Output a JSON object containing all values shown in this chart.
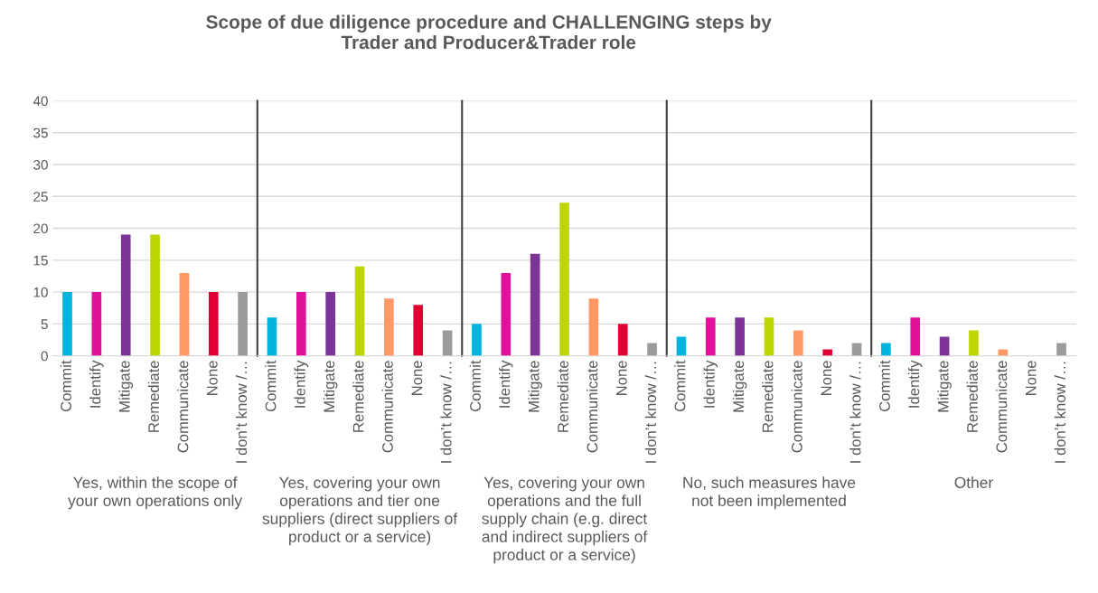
{
  "chart_data": [
    {
      "type": "bar",
      "title": "Scope of due diligence procedure and CHALLENGING steps by\nTrader and Producer&Trader role",
      "xlabel": "Yes, within the scope of\nyour own operations only",
      "categories": [
        "Commit",
        "Identify",
        "Mitigate",
        "Remediate",
        "Communicate",
        "None",
        "I don’t know /…"
      ],
      "values": [
        10,
        10,
        19,
        19,
        13,
        10,
        10
      ],
      "colors": [
        "#00b4e0",
        "#e0129c",
        "#7c3597",
        "#bed600",
        "#ff9966",
        "#e00034",
        "#9b9b9b"
      ],
      "ylim": [
        0,
        40
      ],
      "yticks": [
        0,
        5,
        10,
        15,
        20,
        25,
        30,
        35,
        40
      ],
      "grid": "y"
    },
    {
      "type": "bar",
      "xlabel": "Yes, covering your own\noperations and tier one\nsuppliers (direct suppliers of\nproduct or a service)",
      "categories": [
        "Commit",
        "Identify",
        "Mitigate",
        "Remediate",
        "Communicate",
        "None",
        "I don’t know /…"
      ],
      "values": [
        6,
        10,
        10,
        14,
        9,
        8,
        4
      ],
      "colors": [
        "#00b4e0",
        "#e0129c",
        "#7c3597",
        "#bed600",
        "#ff9966",
        "#e00034",
        "#9b9b9b"
      ],
      "ylim": [
        0,
        40
      ],
      "tick_labels": "x",
      "grid": "y"
    },
    {
      "type": "bar",
      "xlabel": "Yes, covering your own\noperations and the full\nsupply chain (e.g. direct\nand indirect suppliers of\nproduct or a service)",
      "categories": [
        "Commit",
        "Identify",
        "Mitigate",
        "Remediate",
        "Communicate",
        "None",
        "I don’t know /…"
      ],
      "values": [
        5,
        13,
        16,
        24,
        9,
        5,
        2
      ],
      "colors": [
        "#00b4e0",
        "#e0129c",
        "#7c3597",
        "#bed600",
        "#ff9966",
        "#e00034",
        "#9b9b9b"
      ],
      "ylim": [
        0,
        40
      ],
      "tick_labels": "x",
      "grid": "y"
    },
    {
      "type": "bar",
      "xlabel": "No, such measures have\nnot been implemented",
      "categories": [
        "Commit",
        "Identify",
        "Mitigate",
        "Remediate",
        "Communicate",
        "None",
        "I don’t know /…"
      ],
      "values": [
        3,
        6,
        6,
        6,
        4,
        1,
        2
      ],
      "colors": [
        "#00b4e0",
        "#e0129c",
        "#7c3597",
        "#bed600",
        "#ff9966",
        "#e00034",
        "#9b9b9b"
      ],
      "ylim": [
        0,
        40
      ],
      "tick_labels": "x",
      "grid": "y"
    },
    {
      "type": "bar",
      "xlabel": "Other",
      "categories": [
        "Commit",
        "Identify",
        "Mitigate",
        "Remediate",
        "Communicate",
        "None",
        "I don’t know /…"
      ],
      "values": [
        2,
        6,
        3,
        4,
        1,
        0,
        2
      ],
      "colors": [
        "#00b4e0",
        "#e0129c",
        "#7c3597",
        "#bed600",
        "#ff9966",
        "#e00034",
        "#9b9b9b"
      ],
      "ylim": [
        0,
        40
      ],
      "tick_labels": "x",
      "grid": "y"
    }
  ]
}
